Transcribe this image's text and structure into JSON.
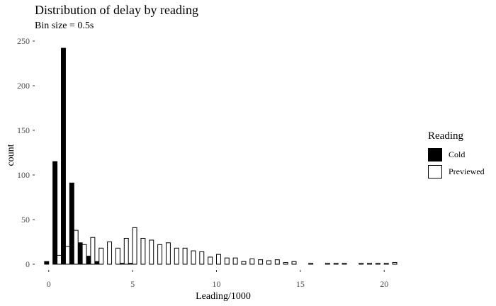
{
  "chart_data": {
    "type": "histogram",
    "title": "Distribution of delay by reading",
    "subtitle": "Bin size = 0.5s",
    "xlabel": "Leading/1000",
    "ylabel": "count",
    "x_ticks": [
      0,
      5,
      10,
      15,
      20
    ],
    "y_ticks": [
      0,
      50,
      100,
      150,
      200,
      250
    ],
    "xlim": [
      -0.75,
      20.75
    ],
    "ylim": [
      0,
      250
    ],
    "bin_width": 0.5,
    "grid": false,
    "legend": {
      "title": "Reading",
      "position": "right"
    },
    "series": [
      {
        "name": "Cold",
        "color": "#000000",
        "x": [
          0,
          0.5,
          1,
          1.5,
          2,
          2.5,
          3,
          4.5,
          5
        ],
        "values": [
          3,
          115,
          242,
          91,
          24,
          9,
          3,
          1,
          1
        ]
      },
      {
        "name": "Previewed",
        "color": "#ffffff",
        "x": [
          0.5,
          1,
          1.5,
          2,
          2.5,
          3,
          3.5,
          4,
          4.5,
          5,
          5.5,
          6,
          6.5,
          7,
          7.5,
          8,
          8.5,
          9,
          9.5,
          10,
          10.5,
          11,
          11.5,
          12,
          12.5,
          13,
          13.5,
          14,
          14.5,
          15.5,
          16.5,
          17,
          17.5,
          18.5,
          19,
          19.5,
          20,
          20.5
        ],
        "values": [
          10,
          20,
          38,
          22,
          30,
          18,
          25,
          18,
          29,
          41,
          29,
          27,
          22,
          24,
          18,
          18,
          15,
          14,
          8,
          11,
          7,
          7,
          3,
          6,
          5,
          4,
          5,
          2,
          3,
          1,
          1,
          1,
          1,
          1,
          1,
          1,
          1,
          2
        ]
      }
    ]
  }
}
